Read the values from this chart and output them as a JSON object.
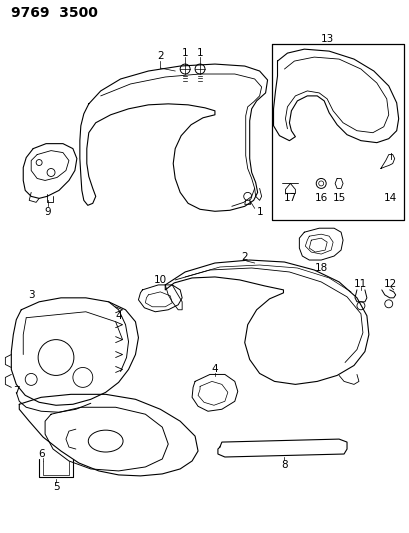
{
  "title": "9769  3500",
  "background_color": "#ffffff",
  "line_color": "#000000",
  "title_fontsize": 10,
  "label_fontsize": 7.5,
  "fig_width": 4.1,
  "fig_height": 5.33,
  "dpi": 100
}
